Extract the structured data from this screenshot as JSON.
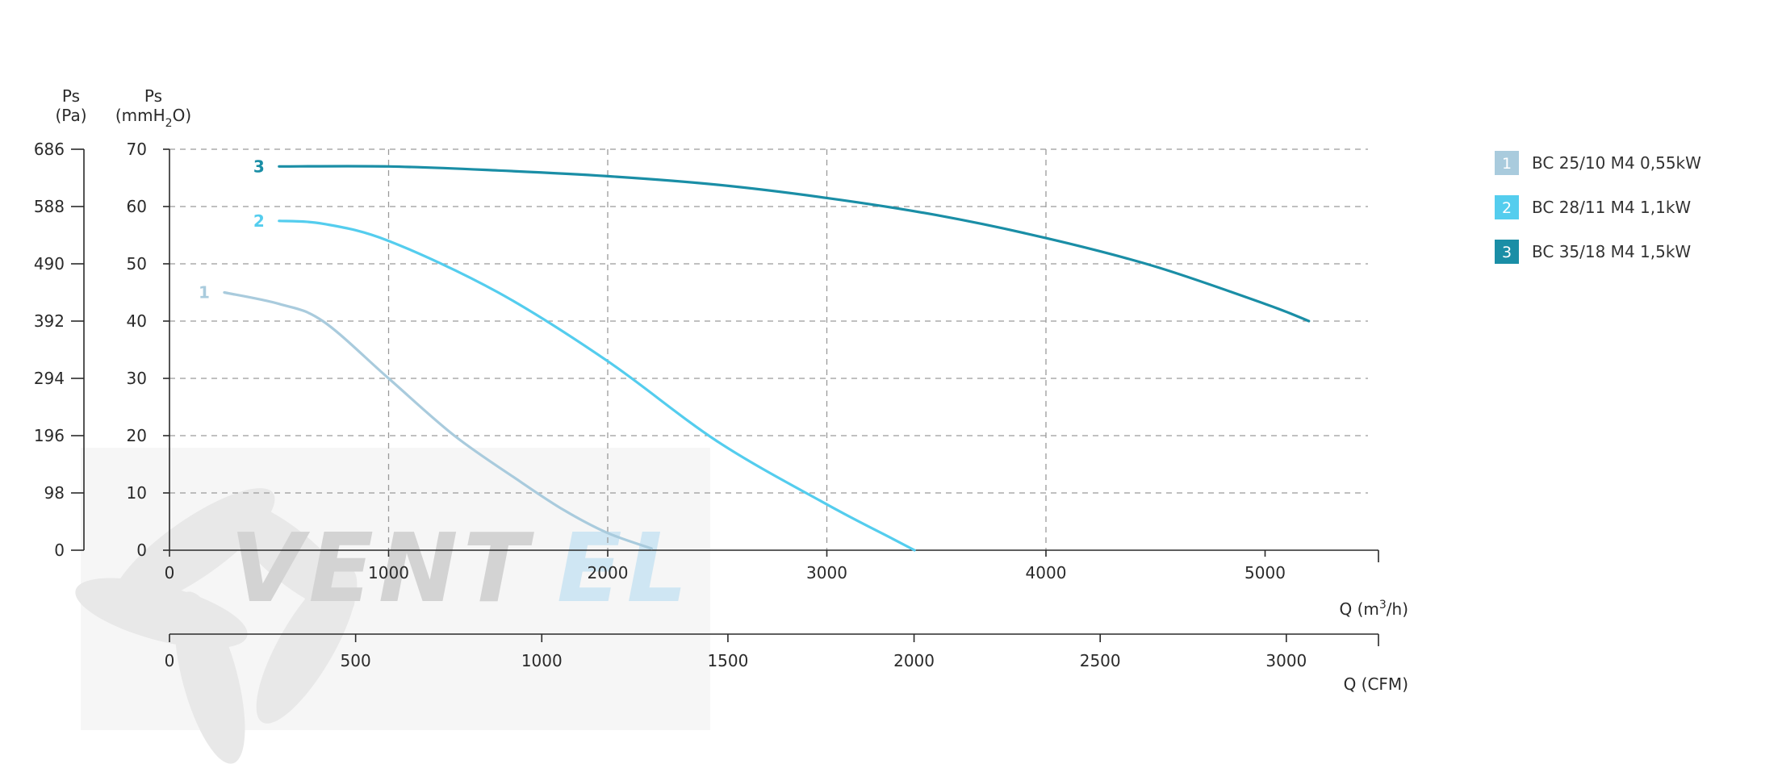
{
  "chart_data": {
    "type": "line",
    "y_left_pa": {
      "label_line1": "Ps",
      "label_line2": "(Pa)",
      "ticks": [
        "0",
        "98",
        "196",
        "294",
        "392",
        "490",
        "588",
        "686"
      ]
    },
    "y_mmh2o": {
      "label_line1": "Ps",
      "label_line2_pre": "(mmH",
      "label_line2_sub": "2",
      "label_line2_post": "O)",
      "ylim": [
        0,
        70
      ],
      "ticks": [
        0,
        10,
        20,
        30,
        40,
        50,
        60,
        70
      ]
    },
    "x_m3h": {
      "label_pre": "Q (m",
      "label_sup": "3",
      "label_post": "/h)",
      "xlim": [
        0,
        5500
      ],
      "ticks": [
        0,
        1000,
        2000,
        3000,
        4000,
        5000
      ]
    },
    "x_cfm": {
      "label": "Q (CFM)",
      "ticks": [
        0,
        500,
        1000,
        1500,
        2000,
        2500,
        3000
      ],
      "m3h_per_cfm": 1.699
    },
    "series": [
      {
        "name": "BC 25/10 M4 0,55kW",
        "id": "1",
        "color": "#a9cbdd",
        "x": [
          250,
          500,
          700,
          1000,
          1300,
          1600,
          1800,
          2000,
          2200
        ],
        "y": [
          45,
          43,
          40,
          30,
          20,
          12,
          7,
          3,
          0.3
        ]
      },
      {
        "name": "BC 28/11 M4 1,1kW",
        "id": "2",
        "color": "#54cdee",
        "x": [
          500,
          700,
          1000,
          1500,
          2000,
          2500,
          3000,
          3300,
          3400
        ],
        "y": [
          57.5,
          57,
          54,
          45,
          33,
          19,
          8,
          2,
          0
        ]
      },
      {
        "name": "BC 35/18 M4 1,5kW",
        "id": "3",
        "color": "#1a8ea6",
        "x": [
          500,
          1000,
          1500,
          2000,
          2500,
          3000,
          3500,
          4000,
          4500,
          5000,
          5200
        ],
        "y": [
          67,
          67,
          66.3,
          65.3,
          63.8,
          61.5,
          58.5,
          54.5,
          49.5,
          43,
          40
        ]
      }
    ]
  },
  "watermark": {
    "part1": "VENT",
    "part2": "EL"
  }
}
